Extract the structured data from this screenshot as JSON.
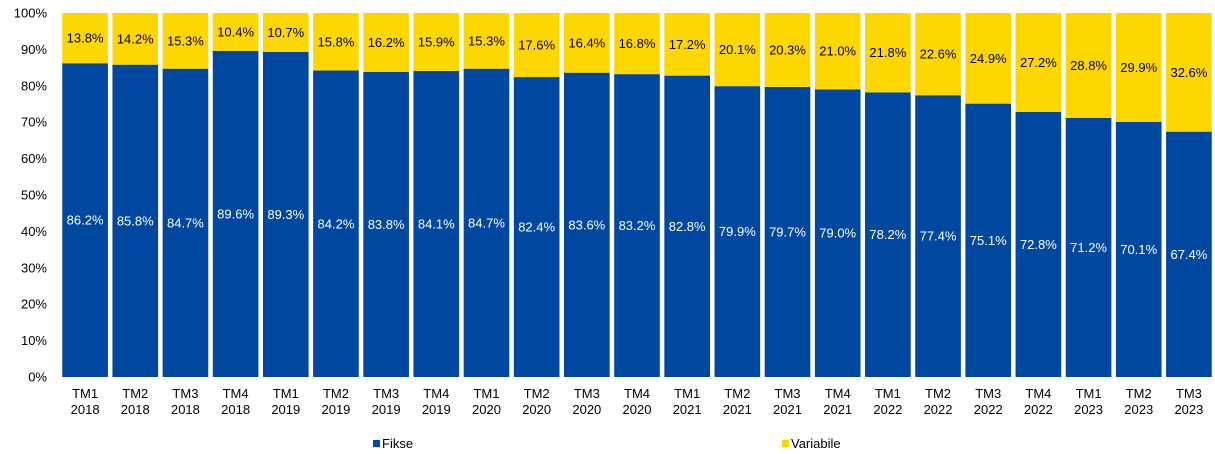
{
  "chart_data": {
    "type": "bar",
    "stacked": true,
    "categories": [
      [
        "TM1",
        "2018"
      ],
      [
        "TM2",
        "2018"
      ],
      [
        "TM3",
        "2018"
      ],
      [
        "TM4",
        "2018"
      ],
      [
        "TM1",
        "2019"
      ],
      [
        "TM2",
        "2019"
      ],
      [
        "TM3",
        "2019"
      ],
      [
        "TM4",
        "2019"
      ],
      [
        "TM1",
        "2020"
      ],
      [
        "TM2",
        "2020"
      ],
      [
        "TM3",
        "2020"
      ],
      [
        "TM4",
        "2020"
      ],
      [
        "TM1",
        "2021"
      ],
      [
        "TM2",
        "2021"
      ],
      [
        "TM3",
        "2021"
      ],
      [
        "TM4",
        "2021"
      ],
      [
        "TM1",
        "2022"
      ],
      [
        "TM2",
        "2022"
      ],
      [
        "TM3",
        "2022"
      ],
      [
        "TM4",
        "2022"
      ],
      [
        "TM1",
        "2023"
      ],
      [
        "TM2",
        "2023"
      ],
      [
        "TM3",
        "2023"
      ]
    ],
    "series": [
      {
        "name": "Fikse",
        "color": "#0047A0",
        "values": [
          86.2,
          85.8,
          84.7,
          89.6,
          89.3,
          84.2,
          83.8,
          84.1,
          84.7,
          82.4,
          83.6,
          83.2,
          82.8,
          79.9,
          79.7,
          79.0,
          78.2,
          77.4,
          75.1,
          72.8,
          71.2,
          70.1,
          67.4
        ],
        "labels": [
          "86.2%",
          "85.8%",
          "84.7%",
          "89.6%",
          "89.3%",
          "84.2%",
          "83.8%",
          "84.1%",
          "84.7%",
          "82.4%",
          "83.6%",
          "83.2%",
          "82.8%",
          "79.9%",
          "79.7%",
          "79.0%",
          "78.2%",
          "77.4%",
          "75.1%",
          "72.8%",
          "71.2%",
          "70.1%",
          "67.4%"
        ]
      },
      {
        "name": "Variabile",
        "color": "#FFD700",
        "values": [
          13.8,
          14.2,
          15.3,
          10.4,
          10.7,
          15.8,
          16.2,
          15.9,
          15.3,
          17.6,
          16.4,
          16.8,
          17.2,
          20.1,
          20.3,
          21.0,
          21.8,
          22.6,
          24.9,
          27.2,
          28.8,
          29.9,
          32.6
        ],
        "labels": [
          "13.8%",
          "14.2%",
          "15.3%",
          "10.4%",
          "10.7%",
          "15.8%",
          "16.2%",
          "15.9%",
          "15.3%",
          "17.6%",
          "16.4%",
          "16.8%",
          "17.2%",
          "20.1%",
          "20.3%",
          "21.0%",
          "21.8%",
          "22.6%",
          "24.9%",
          "27.2%",
          "28.8%",
          "29.9%",
          "32.6%"
        ]
      }
    ],
    "yticks": [
      "0%",
      "10%",
      "20%",
      "30%",
      "40%",
      "50%",
      "60%",
      "70%",
      "80%",
      "90%",
      "100%"
    ],
    "ylim": [
      0,
      100
    ],
    "grid": false,
    "legend": "bottom"
  }
}
